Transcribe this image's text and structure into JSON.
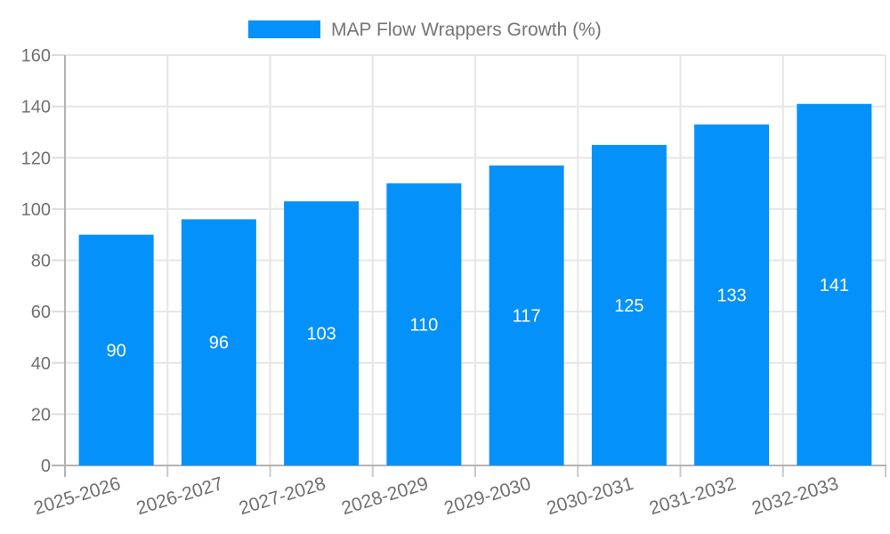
{
  "legend": {
    "label": "MAP Flow Wrappers Growth (%)"
  },
  "colors": {
    "bar": "#0591fa",
    "value_label": "#ffffff",
    "axis_label": "#707070",
    "legend_text": "#757575",
    "grid_line": "#e6e6e6",
    "axis_line": "#b3b3b3",
    "y_tick": "#dcdcdc",
    "x_tick": "#c9c9c9",
    "background": "#ffffff"
  },
  "chart_data": {
    "type": "bar",
    "title": "",
    "legend_label": "MAP Flow Wrappers Growth (%)",
    "legend_position": "top",
    "categories": [
      "2025-2026",
      "2026-2027",
      "2027-2028",
      "2028-2029",
      "2029-2030",
      "2030-2031",
      "2031-2032",
      "2032-2033"
    ],
    "values": [
      90,
      96,
      103,
      110,
      117,
      125,
      133,
      141
    ],
    "xlabel": "",
    "ylabel": "",
    "ylim": [
      0,
      160
    ],
    "ytick_step": 20,
    "ytick_labels": [
      "0",
      "20",
      "40",
      "60",
      "80",
      "100",
      "120",
      "140",
      "160"
    ],
    "grid": true,
    "bar_label_position": "center",
    "x_label_rotation_deg": -17
  }
}
